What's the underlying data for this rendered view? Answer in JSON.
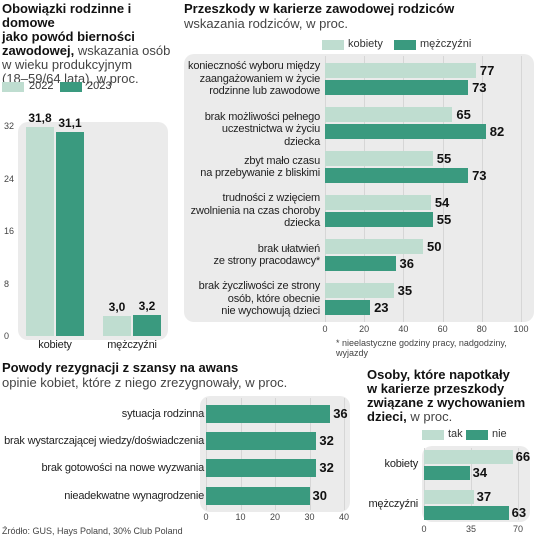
{
  "colors": {
    "light": "#bfddd0",
    "dark": "#3a9a7f",
    "panel": "#ebebeb",
    "grid": "#d6d6d6"
  },
  "panel1": {
    "title": "Obowiązki rodzinne i domowe jako powód bierności zawodowej,",
    "title_l1": "Obowiązki rodzinne i domowe",
    "title_l2": "jako powód bierności",
    "title_l3": "zawodowej,",
    "subtitle_l3": " wskazania osób",
    "subtitle_l4": "w wieku produkcyjnym",
    "subtitle_l5": "(18–59/64 lata), w proc."
  },
  "panel2": {
    "title": "Przeszkody w karierze zawodowej rodziców",
    "subtitle": "wskazania rodziców, w proc.",
    "footnote": "* nieelastyczne godziny pracy, nadgodziny, wyjazdy"
  },
  "panel3": {
    "title": "Powody rezygnacji z szansy na awans",
    "subtitle": "opinie kobiet, które z niego zrezygnowały, w proc."
  },
  "panel4": {
    "title_l1": "Osoby, które napotkały",
    "title_l2": "w karierze przeszkody",
    "title_l3": "związane z wychowaniem",
    "title_l4": "dzieci,",
    "subtitle": " w proc."
  },
  "source": "Źródło: GUS, Hays Poland, 30% Club Poland",
  "chart_data": [
    {
      "type": "bar",
      "title": "Obowiązki rodzinne i domowe jako powód bierności zawodowej",
      "categories": [
        "kobiety",
        "mężczyźni"
      ],
      "series": [
        {
          "name": "2022",
          "values": [
            31.8,
            3.0
          ],
          "labels": [
            "31,8",
            "3,0"
          ]
        },
        {
          "name": "2023",
          "values": [
            31.1,
            3.2
          ],
          "labels": [
            "31,1",
            "3,2"
          ]
        }
      ],
      "ylim": [
        0,
        32
      ],
      "yticks": [
        "0",
        "8",
        "16",
        "24",
        "32"
      ],
      "legend": "top"
    },
    {
      "type": "bar",
      "orientation": "horizontal",
      "title": "Przeszkody w karierze zawodowej rodziców",
      "categories": [
        [
          "konieczność wyboru między",
          "zaangażowaniem w życie",
          "rodzinne lub zawodowe"
        ],
        [
          "brak możliwości pełnego",
          "uczestnictwa w życiu dziecka"
        ],
        [
          "zbyt mało czasu",
          "na przebywanie z bliskimi"
        ],
        [
          "trudności z wzięciem",
          "zwolnienia na czas choroby",
          "dziecka"
        ],
        [
          "brak ułatwień",
          "ze strony pracodawcy*"
        ],
        [
          "brak życzliwości ze strony",
          "osób, które obecnie",
          "nie wychowują dzieci"
        ]
      ],
      "series": [
        {
          "name": "kobiety",
          "values": [
            77,
            65,
            55,
            54,
            50,
            35
          ]
        },
        {
          "name": "mężczyźni",
          "values": [
            73,
            82,
            73,
            55,
            36,
            23
          ]
        }
      ],
      "xlim": [
        0,
        100
      ],
      "xticks": [
        "0",
        "20",
        "40",
        "60",
        "80",
        "100"
      ],
      "legend": "top"
    },
    {
      "type": "bar",
      "orientation": "horizontal",
      "title": "Powody rezygnacji z szansy na awans",
      "categories": [
        "sytuacja rodzinna",
        "brak wystarczającej wiedzy/doświadczenia",
        "brak gotowości na nowe wyzwania",
        "nieadekwatne wynagrodzenie"
      ],
      "values": [
        36,
        32,
        32,
        30
      ],
      "xlim": [
        0,
        40
      ],
      "xticks": [
        "0",
        "10",
        "20",
        "30",
        "40"
      ]
    },
    {
      "type": "bar",
      "orientation": "horizontal",
      "title": "Osoby, które napotkały w karierze przeszkody związane z wychowaniem dzieci",
      "categories": [
        "kobiety",
        "mężczyźni"
      ],
      "series": [
        {
          "name": "tak",
          "values": [
            66,
            37
          ]
        },
        {
          "name": "nie",
          "values": [
            34,
            63
          ]
        }
      ],
      "xlim": [
        0,
        70
      ],
      "xticks": [
        "0",
        "35",
        "70"
      ],
      "legend": "top"
    }
  ]
}
